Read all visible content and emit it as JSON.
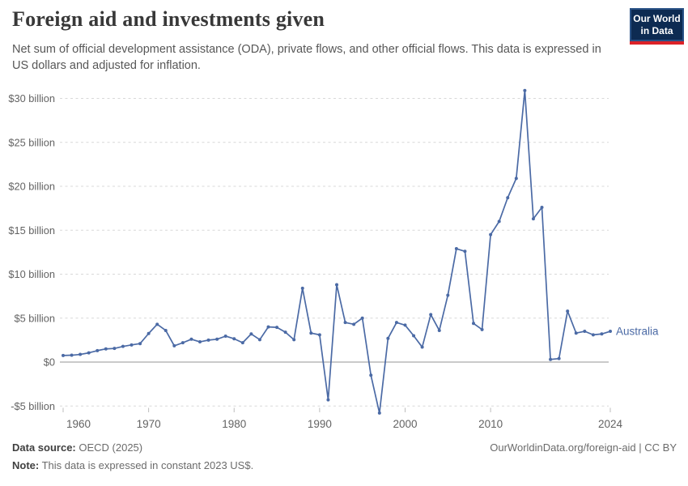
{
  "header": {
    "title": "Foreign aid and investments given",
    "subtitle": "Net sum of official development assistance (ODA), private flows, and other official flows. This data is expressed in US dollars and adjusted for inflation.",
    "logo": {
      "line1": "Our World",
      "line2": "in Data"
    }
  },
  "chart_data": {
    "type": "line",
    "title": "Foreign aid and investments given",
    "unit": "US$ billion (constant 2023)",
    "xlim": [
      1960,
      2024
    ],
    "ylim": [
      -6,
      32
    ],
    "grid": "horizontal-dashed",
    "zero_line": true,
    "legend_position": "end-of-line",
    "x_ticks": [
      1960,
      1970,
      1980,
      1990,
      2000,
      2010,
      2024
    ],
    "y_ticks": [
      {
        "value": 30,
        "label": "$30 billion"
      },
      {
        "value": 25,
        "label": "$25 billion"
      },
      {
        "value": 20,
        "label": "$20 billion"
      },
      {
        "value": 15,
        "label": "$15 billion"
      },
      {
        "value": 10,
        "label": "$10 billion"
      },
      {
        "value": 5,
        "label": "$5 billion"
      },
      {
        "value": 0,
        "label": "$0"
      },
      {
        "value": -5,
        "label": "-$5 billion"
      }
    ],
    "series": [
      {
        "name": "Australia",
        "color": "#4b6aa5",
        "years": [
          1960,
          1961,
          1962,
          1963,
          1964,
          1965,
          1966,
          1967,
          1968,
          1969,
          1970,
          1971,
          1972,
          1973,
          1974,
          1975,
          1976,
          1977,
          1978,
          1979,
          1980,
          1981,
          1982,
          1983,
          1984,
          1985,
          1986,
          1987,
          1988,
          1989,
          1990,
          1991,
          1992,
          1993,
          1994,
          1995,
          1996,
          1997,
          1998,
          1999,
          2000,
          2001,
          2002,
          2003,
          2004,
          2005,
          2006,
          2007,
          2008,
          2009,
          2010,
          2011,
          2012,
          2013,
          2014,
          2015,
          2016,
          2017,
          2018,
          2019,
          2020,
          2021,
          2022,
          2023,
          2024
        ],
        "values": [
          0.75,
          0.78,
          0.87,
          1.05,
          1.3,
          1.5,
          1.55,
          1.78,
          1.95,
          2.1,
          3.25,
          4.3,
          3.6,
          1.85,
          2.2,
          2.6,
          2.3,
          2.5,
          2.6,
          2.95,
          2.65,
          2.2,
          3.2,
          2.55,
          4.0,
          3.95,
          3.4,
          2.55,
          8.4,
          3.3,
          3.1,
          -4.3,
          8.8,
          4.5,
          4.3,
          5.0,
          -1.5,
          -5.8,
          2.7,
          4.5,
          4.2,
          3.0,
          1.7,
          5.4,
          3.6,
          7.6,
          12.9,
          12.6,
          4.4,
          3.7,
          14.5,
          16.0,
          18.7,
          20.9,
          30.9,
          16.3,
          17.6,
          0.3,
          0.4,
          5.8,
          3.3,
          3.5,
          3.1,
          3.2,
          3.5
        ]
      }
    ]
  },
  "footer": {
    "data_source_label": "Data source:",
    "data_source_value": " OECD (2025)",
    "note_label": "Note:",
    "note_value": " This data is expressed in constant 2023 US$.",
    "link": "OurWorldinData.org/foreign-aid | CC BY"
  }
}
